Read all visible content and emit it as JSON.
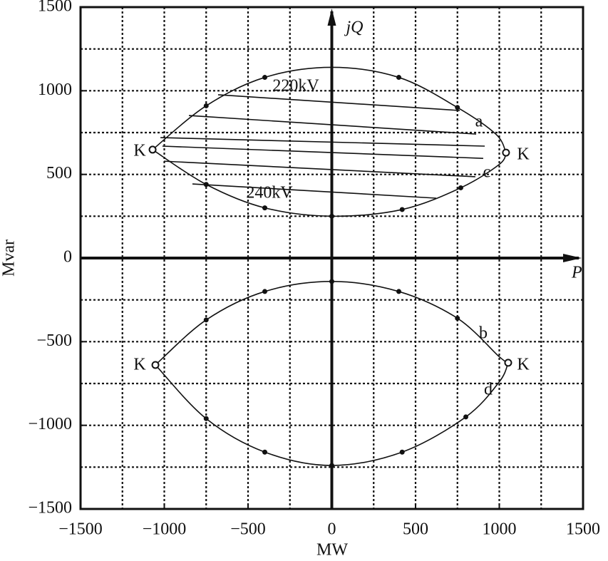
{
  "chart_data": {
    "type": "line",
    "xlabel": "MW",
    "ylabel": "Mvar",
    "xlim": [
      -1500,
      1500
    ],
    "ylim": [
      -1500,
      1500
    ],
    "xticks": [
      {
        "value": -1500,
        "label": "−1500"
      },
      {
        "value": -1000,
        "label": "−1000"
      },
      {
        "value": -500,
        "label": "−500"
      },
      0,
      500,
      1000,
      1500
    ],
    "yticks": [
      {
        "value": -1500,
        "label": "−1500"
      },
      {
        "value": -1000,
        "label": "−1000"
      },
      {
        "value": -500,
        "label": "−500"
      },
      0,
      500,
      1000,
      1500
    ],
    "grid_x": [
      -1250,
      -1000,
      -750,
      -500,
      -250,
      250,
      500,
      750,
      1000,
      1250
    ],
    "grid_y": [
      -1250,
      -1000,
      -750,
      -500,
      -250,
      250,
      500,
      750,
      1000,
      1250
    ],
    "grid": true,
    "axis_labels": [
      "jQ",
      "P"
    ],
    "color": "#111111",
    "series": [
      {
        "kind": "curve",
        "x": [
          -1070,
          -750,
          -400,
          0,
          400,
          750,
          980,
          1040
        ],
        "values": [
          648,
          910,
          1080,
          1140,
          1080,
          900,
          740,
          630
        ]
      },
      {
        "kind": "curve",
        "x": [
          -1070,
          -750,
          -400,
          0,
          420,
          770,
          1000,
          1040
        ],
        "values": [
          648,
          440,
          300,
          250,
          290,
          420,
          560,
          630
        ]
      },
      {
        "kind": "curve",
        "x": [
          -1053,
          -750,
          -400,
          0,
          400,
          750,
          1000,
          1053
        ],
        "values": [
          -639,
          -370,
          -200,
          -140,
          -200,
          -360,
          -590,
          -626
        ]
      },
      {
        "kind": "curve",
        "x": [
          -1053,
          -750,
          -400,
          0,
          420,
          800,
          1000,
          1053
        ],
        "values": [
          -639,
          -960,
          -1160,
          -1240,
          -1160,
          -950,
          -740,
          -626
        ]
      },
      {
        "kind": "line",
        "x": [
          -679,
          764
        ],
        "values": [
          976,
          882
        ]
      },
      {
        "kind": "line",
        "x": [
          -853,
          862
        ],
        "values": [
          852,
          741
        ]
      },
      {
        "kind": "line",
        "x": [
          -1023,
          913
        ],
        "values": [
          720,
          669
        ]
      },
      {
        "kind": "line",
        "x": [
          -1011,
          904
        ],
        "values": [
          669,
          596
        ]
      },
      {
        "kind": "line",
        "x": [
          -1002,
          857
        ],
        "values": [
          579,
          486
        ]
      },
      {
        "kind": "line",
        "x": [
          -832,
          623
        ],
        "values": [
          443,
          358
        ]
      },
      {
        "kind": "dots",
        "x": [
          -750,
          -400,
          400,
          750,
          -750,
          -400,
          0,
          420,
          770,
          -750,
          -400,
          0,
          400,
          750,
          -750,
          -400,
          0,
          420,
          800
        ],
        "values": [
          910,
          1080,
          1080,
          900,
          440,
          300,
          250,
          290,
          420,
          -370,
          -200,
          -140,
          -200,
          -360,
          -960,
          -1160,
          -1240,
          -1160,
          -950
        ]
      },
      {
        "kind": "open",
        "x": [
          -1070,
          1040,
          -1053,
          1053
        ],
        "values": [
          648,
          630,
          -639,
          -626
        ]
      }
    ],
    "annotations": [
      "220kV",
      "a",
      "K",
      "K",
      "c",
      "240kV",
      "b",
      "K",
      "K",
      "d"
    ]
  }
}
